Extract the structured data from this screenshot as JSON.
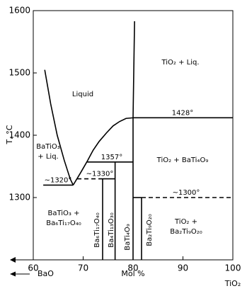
{
  "chart_data": {
    "type": "phase-diagram",
    "xlabel": "Mol %",
    "ylabel": "T, °C",
    "left_component": "BaO",
    "right_component": "TiO₂",
    "xlim": [
      60,
      100
    ],
    "ylim": [
      1200,
      1600
    ],
    "xticks": [
      60,
      70,
      80,
      90,
      100
    ],
    "yticks": [
      1300,
      1400,
      1500,
      1600
    ],
    "series": [
      {
        "color": "#000000",
        "dashed": false,
        "x": [
          62.3,
          63.5,
          64.8,
          66.2,
          67.4,
          68
        ],
        "values": [
          1505,
          1450,
          1400,
          1360,
          1330,
          1320
        ]
      },
      {
        "color": "#000000",
        "dashed": false,
        "x": [
          68,
          69.5,
          70.8,
          72,
          73.2,
          74.7,
          76,
          77.3,
          78.6,
          80
        ],
        "values": [
          1320,
          1340,
          1358,
          1376,
          1390,
          1404,
          1415,
          1422,
          1427,
          1428
        ]
      },
      {
        "color": "#000000",
        "dashed": false,
        "x": [
          80,
          80.3
        ],
        "values": [
          1428,
          1583
        ]
      },
      {
        "color": "#000000",
        "dashed": false,
        "x": [
          80,
          100
        ],
        "values": [
          1428,
          1428
        ]
      },
      {
        "color": "#000000",
        "dashed": false,
        "x": [
          70.8,
          80
        ],
        "values": [
          1357,
          1357
        ]
      },
      {
        "color": "#000000",
        "dashed": false,
        "x": [
          80,
          80
        ],
        "values": [
          1428,
          1200
        ]
      },
      {
        "color": "#000000",
        "dashed": false,
        "x": [
          76.4,
          76.4
        ],
        "values": [
          1357,
          1200
        ]
      },
      {
        "color": "#000000",
        "dashed": false,
        "x": [
          73.9,
          73.9
        ],
        "values": [
          1330,
          1200
        ]
      },
      {
        "color": "#000000",
        "dashed": false,
        "x": [
          73.9,
          76.4
        ],
        "values": [
          1330,
          1330
        ]
      },
      {
        "color": "#000000",
        "dashed": true,
        "x": [
          68.8,
          73.9
        ],
        "values": [
          1330,
          1330
        ]
      },
      {
        "color": "#000000",
        "dashed": false,
        "x": [
          62,
          68
        ],
        "values": [
          1320,
          1320
        ]
      },
      {
        "color": "#000000",
        "dashed": false,
        "x": [
          80,
          81.7
        ],
        "values": [
          1300,
          1300
        ]
      },
      {
        "color": "#000000",
        "dashed": true,
        "x": [
          81.7,
          100
        ],
        "values": [
          1300,
          1300
        ]
      },
      {
        "color": "#000000",
        "dashed": false,
        "x": [
          81.7,
          81.7
        ],
        "values": [
          1300,
          1200
        ]
      }
    ],
    "temperature_labels": [
      {
        "value": 1428,
        "label": "1428°"
      },
      {
        "value": 1357,
        "label": "1357°"
      },
      {
        "value": 1330,
        "label": "~1330°"
      },
      {
        "value": 1320,
        "label": "~1320°"
      },
      {
        "value": 1300,
        "label": "~1300°"
      }
    ],
    "region_labels": [
      {
        "lines": [
          "Liquid"
        ]
      },
      {
        "lines": [
          "TiO₂ + Liq."
        ]
      },
      {
        "lines": [
          "BaTiO₃",
          "+ Liq."
        ]
      },
      {
        "lines": [
          "TiO₂ + BaTi₄O₉"
        ]
      },
      {
        "lines": [
          "BaTiO₃ +",
          "Ba₆Ti₁₇O₄₀"
        ]
      },
      {
        "lines": [
          "TiO₂ +",
          "Ba₂Ti₉O₂₀"
        ]
      },
      {
        "lines": [
          "Ba₆Ti₁₇O₄₀"
        ]
      },
      {
        "lines": [
          "Ba₄Ti₁₃O₃₀"
        ]
      },
      {
        "lines": [
          "BaTi₄O₉"
        ]
      },
      {
        "lines": [
          "Ba₂Ti₉O₂₀"
        ]
      }
    ]
  }
}
